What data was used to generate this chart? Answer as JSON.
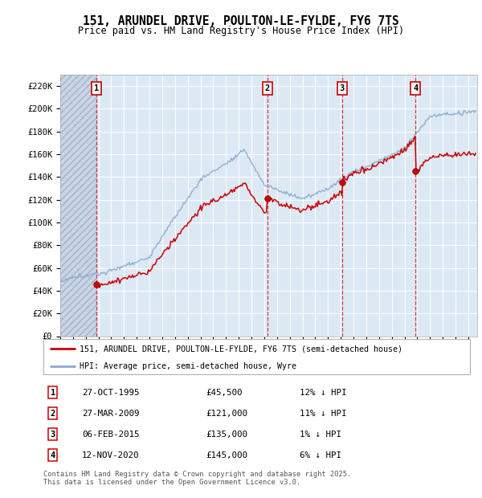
{
  "title": "151, ARUNDEL DRIVE, POULTON-LE-FYLDE, FY6 7TS",
  "subtitle": "Price paid vs. HM Land Registry's House Price Index (HPI)",
  "ylim": [
    0,
    230000
  ],
  "yticks": [
    0,
    20000,
    40000,
    60000,
    80000,
    100000,
    120000,
    140000,
    160000,
    180000,
    200000,
    220000
  ],
  "ytick_labels": [
    "£0",
    "£20K",
    "£40K",
    "£60K",
    "£80K",
    "£100K",
    "£120K",
    "£140K",
    "£160K",
    "£180K",
    "£200K",
    "£220K"
  ],
  "xlim_start": 1993.0,
  "xlim_end": 2025.7,
  "sale_dates_year": [
    1995.82,
    2009.24,
    2015.09,
    2020.87
  ],
  "sale_prices": [
    45500,
    121000,
    135000,
    145000
  ],
  "sale_labels": [
    "1",
    "2",
    "3",
    "4"
  ],
  "sale_info": [
    {
      "label": "1",
      "date": "27-OCT-1995",
      "price": "£45,500",
      "hpi": "12% ↓ HPI"
    },
    {
      "label": "2",
      "date": "27-MAR-2009",
      "price": "£121,000",
      "hpi": "11% ↓ HPI"
    },
    {
      "label": "3",
      "date": "06-FEB-2015",
      "price": "£135,000",
      "hpi": "1% ↓ HPI"
    },
    {
      "label": "4",
      "date": "12-NOV-2020",
      "price": "£145,000",
      "hpi": "6% ↓ HPI"
    }
  ],
  "legend_line1": "151, ARUNDEL DRIVE, POULTON-LE-FYLDE, FY6 7TS (semi-detached house)",
  "legend_line2": "HPI: Average price, semi-detached house, Wyre",
  "footer": "Contains HM Land Registry data © Crown copyright and database right 2025.\nThis data is licensed under the Open Government Licence v3.0.",
  "actual_color": "#cc0000",
  "hpi_color": "#88aacc",
  "background_color": "#dce9f5",
  "grid_color": "#ffffff"
}
